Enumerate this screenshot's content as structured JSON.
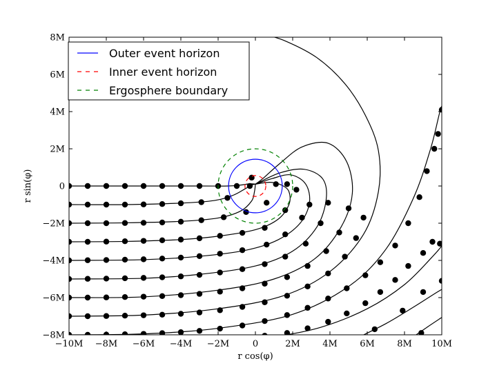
{
  "chart_data": {
    "type": "line",
    "title": "",
    "xlabel": "r cos(φ)",
    "ylabel": "r sin(φ)",
    "xlim": [
      -10,
      10
    ],
    "ylim": [
      -8,
      8
    ],
    "grid": false,
    "legend_placement": "top-left",
    "x_ticks": [
      {
        "value": -10,
        "label": "−10M"
      },
      {
        "value": -8,
        "label": "−8M"
      },
      {
        "value": -6,
        "label": "−6M"
      },
      {
        "value": -4,
        "label": "−4M"
      },
      {
        "value": -2,
        "label": "−2M"
      },
      {
        "value": 0,
        "label": "0"
      },
      {
        "value": 2,
        "label": "2M"
      },
      {
        "value": 4,
        "label": "4M"
      },
      {
        "value": 6,
        "label": "6M"
      },
      {
        "value": 8,
        "label": "8M"
      },
      {
        "value": 10,
        "label": "10M"
      }
    ],
    "y_ticks": [
      {
        "value": -8,
        "label": "−8M"
      },
      {
        "value": -6,
        "label": "−6M"
      },
      {
        "value": -4,
        "label": "−4M"
      },
      {
        "value": -2,
        "label": "−2M"
      },
      {
        "value": 0,
        "label": "0"
      },
      {
        "value": 2,
        "label": "2M"
      },
      {
        "value": 4,
        "label": "4M"
      },
      {
        "value": 6,
        "label": "6M"
      },
      {
        "value": 8,
        "label": "8M"
      }
    ],
    "series": [
      {
        "name": "Outer event horizon",
        "kind": "circle",
        "radius": 1.44,
        "color": "#0000ff",
        "dash": "solid"
      },
      {
        "name": "Inner event horizon",
        "kind": "circle",
        "radius": 0.56,
        "color": "#ff0000",
        "dash": "dashed"
      },
      {
        "name": "Ergosphere boundary",
        "kind": "circle",
        "radius": 2.0,
        "color": "#008000",
        "dash": "dashed"
      }
    ],
    "trajectories": [
      {
        "line": [
          [
            -10,
            0
          ],
          [
            -6,
            0
          ],
          [
            -3,
            0
          ],
          [
            -1.5,
            0
          ],
          [
            -0.8,
            0.05
          ],
          [
            -0.3,
            0.12
          ],
          [
            0,
            0.1
          ]
        ],
        "points": [
          [
            -10,
            0
          ],
          [
            -9,
            0
          ],
          [
            -8,
            0
          ],
          [
            -7,
            0
          ],
          [
            -6,
            0
          ],
          [
            -5,
            0
          ],
          [
            -4,
            0
          ],
          [
            -3,
            0
          ],
          [
            -2,
            0
          ],
          [
            -1,
            0
          ],
          [
            -0.3,
            0
          ]
        ]
      },
      {
        "line": [
          [
            -10,
            -1
          ],
          [
            -7,
            -1
          ],
          [
            -4,
            -0.92
          ],
          [
            -2.2,
            -0.78
          ],
          [
            -1.2,
            -0.5
          ],
          [
            -0.55,
            -0.15
          ],
          [
            -0.2,
            0.05
          ],
          [
            0,
            0.1
          ]
        ],
        "points": [
          [
            -10,
            -1
          ],
          [
            -9,
            -1
          ],
          [
            -8,
            -1
          ],
          [
            -7,
            -1
          ],
          [
            -6,
            -0.99
          ],
          [
            -5,
            -0.97
          ],
          [
            -4,
            -0.93
          ],
          [
            -2.9,
            -0.87
          ],
          [
            -1.5,
            -0.64
          ],
          [
            -0.2,
            0.45
          ],
          [
            1.1,
            0.1
          ]
        ]
      },
      {
        "line": [
          [
            -10,
            -2
          ],
          [
            -7,
            -1.98
          ],
          [
            -4,
            -1.9
          ],
          [
            -2,
            -1.72
          ],
          [
            -0.8,
            -1.35
          ],
          [
            -0.2,
            -0.8
          ],
          [
            -0.05,
            -0.3
          ],
          [
            0,
            0.1
          ]
        ],
        "points": [
          [
            -10,
            -2
          ],
          [
            -9,
            -2
          ],
          [
            -8,
            -2
          ],
          [
            -7,
            -1.99
          ],
          [
            -6,
            -1.98
          ],
          [
            -5,
            -1.96
          ],
          [
            -4,
            -1.92
          ],
          [
            -2.9,
            -1.84
          ],
          [
            -1.7,
            -1.68
          ],
          [
            -0.5,
            -1.4
          ],
          [
            0.6,
            -0.9
          ],
          [
            1.7,
            0.1
          ]
        ]
      },
      {
        "line": [
          [
            -10,
            -3
          ],
          [
            -7,
            -2.98
          ],
          [
            -4,
            -2.88
          ],
          [
            -2,
            -2.7
          ],
          [
            0,
            -2.35
          ],
          [
            1.2,
            -1.8
          ],
          [
            1.8,
            -1.0
          ],
          [
            1.8,
            -0.3
          ],
          [
            1.4,
            0.05
          ],
          [
            0.8,
            0.2
          ],
          [
            0,
            0.1
          ]
        ],
        "points": [
          [
            -10,
            -3
          ],
          [
            -9,
            -3
          ],
          [
            -8,
            -2.99
          ],
          [
            -7,
            -2.97
          ],
          [
            -6,
            -2.95
          ],
          [
            -5,
            -2.92
          ],
          [
            -4,
            -2.88
          ],
          [
            -3,
            -2.81
          ],
          [
            -1.9,
            -2.68
          ],
          [
            -0.7,
            -2.52
          ],
          [
            0.5,
            -2.25
          ],
          [
            1.6,
            -1.3
          ],
          [
            2.2,
            -0.2
          ]
        ]
      },
      {
        "line": [
          [
            -10,
            -4
          ],
          [
            -6,
            -3.96
          ],
          [
            -3,
            -3.78
          ],
          [
            -0.5,
            -3.45
          ],
          [
            1.2,
            -2.9
          ],
          [
            2.4,
            -2.0
          ],
          [
            2.9,
            -0.9
          ],
          [
            2.7,
            0.1
          ],
          [
            1.9,
            0.6
          ],
          [
            0.9,
            0.4
          ],
          [
            0,
            0.1
          ]
        ],
        "points": [
          [
            -10,
            -4
          ],
          [
            -9,
            -3.99
          ],
          [
            -8,
            -3.98
          ],
          [
            -7,
            -3.96
          ],
          [
            -6,
            -3.94
          ],
          [
            -5,
            -3.9
          ],
          [
            -4,
            -3.85
          ],
          [
            -3,
            -3.77
          ],
          [
            -1.9,
            -3.64
          ],
          [
            -0.7,
            -3.45
          ],
          [
            0.6,
            -3.15
          ],
          [
            1.6,
            -2.6
          ],
          [
            2.5,
            -1.7
          ],
          [
            2.9,
            -1.0
          ]
        ]
      },
      {
        "line": [
          [
            -10,
            -5
          ],
          [
            -6,
            -4.96
          ],
          [
            -3,
            -4.75
          ],
          [
            0,
            -4.3
          ],
          [
            2,
            -3.5
          ],
          [
            3.3,
            -2.2
          ],
          [
            3.8,
            -0.7
          ],
          [
            3.6,
            0.4
          ],
          [
            2.6,
            0.9
          ],
          [
            1.3,
            0.7
          ],
          [
            0,
            0.1
          ]
        ],
        "points": [
          [
            -10,
            -5
          ],
          [
            -9,
            -4.99
          ],
          [
            -8,
            -4.98
          ],
          [
            -7,
            -4.96
          ],
          [
            -6,
            -4.94
          ],
          [
            -5,
            -4.91
          ],
          [
            -4,
            -4.86
          ],
          [
            -3,
            -4.78
          ],
          [
            -1.9,
            -4.65
          ],
          [
            -0.7,
            -4.47
          ],
          [
            0.5,
            -4.2
          ],
          [
            1.6,
            -3.8
          ],
          [
            2.7,
            -3.1
          ],
          [
            3.5,
            -2.0
          ],
          [
            3.9,
            -0.9
          ]
        ]
      },
      {
        "line": [
          [
            -10,
            -6
          ],
          [
            -6,
            -5.96
          ],
          [
            -2,
            -5.6
          ],
          [
            1,
            -5.0
          ],
          [
            3.2,
            -3.9
          ],
          [
            4.6,
            -2.2
          ],
          [
            5.2,
            -0.4
          ],
          [
            4.9,
            1.3
          ],
          [
            3.9,
            2.3
          ],
          [
            2.5,
            2.1
          ],
          [
            1.3,
            1.2
          ],
          [
            0.4,
            0.4
          ],
          [
            0,
            0.1
          ]
        ],
        "points": [
          [
            -10,
            -6
          ],
          [
            -9,
            -6
          ],
          [
            -8,
            -5.99
          ],
          [
            -7,
            -5.97
          ],
          [
            -6,
            -5.95
          ],
          [
            -5,
            -5.92
          ],
          [
            -4,
            -5.87
          ],
          [
            -3,
            -5.8
          ],
          [
            -1.9,
            -5.68
          ],
          [
            -0.7,
            -5.5
          ],
          [
            0.5,
            -5.25
          ],
          [
            1.7,
            -4.9
          ],
          [
            2.8,
            -4.3
          ],
          [
            3.8,
            -3.5
          ],
          [
            4.5,
            -2.5
          ],
          [
            5.0,
            -1.2
          ]
        ]
      },
      {
        "line": [
          [
            -10,
            -7
          ],
          [
            -6,
            -6.94
          ],
          [
            -2,
            -6.6
          ],
          [
            1.5,
            -5.9
          ],
          [
            4,
            -4.6
          ],
          [
            5.8,
            -2.6
          ],
          [
            6.6,
            -0.3
          ],
          [
            6.6,
            1.9
          ],
          [
            5.9,
            3.8
          ],
          [
            4.8,
            5.5
          ],
          [
            3.3,
            6.9
          ],
          [
            1.6,
            7.8
          ],
          [
            0.3,
            8.2
          ]
        ],
        "points": [
          [
            -10,
            -7
          ],
          [
            -9,
            -7
          ],
          [
            -8,
            -6.99
          ],
          [
            -7,
            -6.97
          ],
          [
            -6,
            -6.95
          ],
          [
            -5,
            -6.92
          ],
          [
            -4,
            -6.87
          ],
          [
            -3,
            -6.8
          ],
          [
            -1.9,
            -6.68
          ],
          [
            -0.7,
            -6.5
          ],
          [
            0.5,
            -6.25
          ],
          [
            1.7,
            -5.9
          ],
          [
            2.8,
            -5.4
          ],
          [
            3.9,
            -4.7
          ],
          [
            4.8,
            -3.8
          ],
          [
            5.4,
            -2.8
          ],
          [
            5.8,
            -1.7
          ]
        ]
      },
      {
        "line": [
          [
            -10,
            -8
          ],
          [
            -6,
            -7.95
          ],
          [
            -2,
            -7.65
          ],
          [
            2,
            -6.9
          ],
          [
            5,
            -5.4
          ],
          [
            7,
            -3.4
          ],
          [
            8.5,
            -0.6
          ],
          [
            9.4,
            2.0
          ],
          [
            9.9,
            4.0
          ],
          [
            10.1,
            4.5
          ]
        ],
        "points": [
          [
            -10,
            -8
          ],
          [
            -9,
            -8
          ],
          [
            -8,
            -7.99
          ],
          [
            -7,
            -7.97
          ],
          [
            -6,
            -7.95
          ],
          [
            -5,
            -7.91
          ],
          [
            -4,
            -7.86
          ],
          [
            -3,
            -7.79
          ],
          [
            -1.9,
            -7.67
          ],
          [
            -0.7,
            -7.5
          ],
          [
            0.5,
            -7.26
          ],
          [
            1.7,
            -6.94
          ],
          [
            2.8,
            -6.55
          ],
          [
            3.9,
            -6.05
          ],
          [
            4.9,
            -5.5
          ],
          [
            5.9,
            -4.8
          ],
          [
            6.7,
            -4.1
          ],
          [
            7.5,
            -3.2
          ],
          [
            8.2,
            -2.0
          ],
          [
            8.8,
            -0.6
          ],
          [
            9.2,
            0.8
          ],
          [
            9.6,
            2.0
          ],
          [
            9.8,
            2.8
          ],
          [
            10,
            4.1
          ]
        ]
      },
      {
        "line": [
          [
            -1.5,
            -8.3
          ],
          [
            1,
            -8.1
          ],
          [
            3.5,
            -7.6
          ],
          [
            6,
            -6.6
          ],
          [
            8,
            -5.3
          ],
          [
            9.5,
            -3.8
          ],
          [
            10.1,
            -3.1
          ]
        ],
        "points": [
          [
            -7,
            -8.1
          ],
          [
            0.5,
            -8.05
          ],
          [
            1.7,
            -7.9
          ],
          [
            2.8,
            -7.65
          ],
          [
            3.9,
            -7.3
          ],
          [
            4.9,
            -6.85
          ],
          [
            5.9,
            -6.3
          ],
          [
            6.7,
            -5.7
          ],
          [
            7.5,
            -5.05
          ],
          [
            8.2,
            -4.3
          ],
          [
            9.0,
            -3.6
          ],
          [
            9.5,
            -3.0
          ],
          [
            9.9,
            -3.1
          ]
        ]
      },
      {
        "line": [
          [
            5.2,
            -8.3
          ],
          [
            7,
            -7.4
          ],
          [
            8.5,
            -6.5
          ],
          [
            9.6,
            -5.8
          ],
          [
            10.1,
            -5.5
          ]
        ],
        "points": [
          [
            6.4,
            -7.7
          ],
          [
            7.9,
            -6.7
          ],
          [
            9.0,
            -5.7
          ],
          [
            10,
            -5.1
          ]
        ]
      },
      {
        "line": [
          [
            8.2,
            -8.3
          ],
          [
            9.2,
            -7.6
          ],
          [
            10.1,
            -7.0
          ]
        ],
        "points": [
          [
            8.9,
            -7.9
          ]
        ]
      }
    ]
  }
}
